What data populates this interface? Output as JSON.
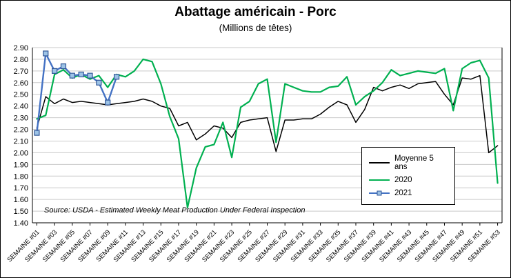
{
  "title": "Abattage américain - Porc",
  "subtitle": "(Millions de têtes)",
  "source": "Source: USDA - Estimated Weekly Meat Production Under Federal Inspection",
  "legend": {
    "items": [
      {
        "label": "Moyenne 5 ans",
        "color": "#000000",
        "marker": "line"
      },
      {
        "label": "2020",
        "color": "#00B050",
        "marker": "line"
      },
      {
        "label": "2021",
        "color": "#4472C4",
        "marker": "square",
        "marker_fill": "#9DC3E6",
        "marker_stroke": "#2F5597"
      }
    ]
  },
  "chart_data": {
    "type": "line",
    "title": "Abattage américain - Porc",
    "subtitle": "(Millions de têtes)",
    "ylim": [
      1.4,
      2.9
    ],
    "ytick_step": 0.1,
    "xtick_interval": 2,
    "grid_color": "#C9C9C9",
    "axis_color": "#000000",
    "legend_position": "right-middle",
    "categories": [
      "SEMAINE #01",
      "SEMAINE #02",
      "SEMAINE #03",
      "SEMAINE #04",
      "SEMAINE #05",
      "SEMAINE #06",
      "SEMAINE #07",
      "SEMAINE #08",
      "SEMAINE #09",
      "SEMAINE #10",
      "SEMAINE #11",
      "SEMAINE #12",
      "SEMAINE #13",
      "SEMAINE #14",
      "SEMAINE #15",
      "SEMAINE #16",
      "SEMAINE #17",
      "SEMAINE #18",
      "SEMAINE #19",
      "SEMAINE #20",
      "SEMAINE #21",
      "SEMAINE #22",
      "SEMAINE #23",
      "SEMAINE #24",
      "SEMAINE #25",
      "SEMAINE #26",
      "SEMAINE #27",
      "SEMAINE #28",
      "SEMAINE #29",
      "SEMAINE #30",
      "SEMAINE #31",
      "SEMAINE #32",
      "SEMAINE #33",
      "SEMAINE #34",
      "SEMAINE #35",
      "SEMAINE #36",
      "SEMAINE #37",
      "SEMAINE #38",
      "SEMAINE #39",
      "SEMAINE #40",
      "SEMAINE #41",
      "SEMAINE #42",
      "SEMAINE #43",
      "SEMAINE #44",
      "SEMAINE #45",
      "SEMAINE #46",
      "SEMAINE #47",
      "SEMAINE #48",
      "SEMAINE #49",
      "SEMAINE #50",
      "SEMAINE #51",
      "SEMAINE #52",
      "SEMAINE #53"
    ],
    "series": [
      {
        "name": "Moyenne 5 ans",
        "color": "#000000",
        "width": 1.5,
        "marker": "none",
        "values": [
          2.21,
          2.48,
          2.42,
          2.46,
          2.43,
          2.44,
          2.43,
          2.42,
          2.41,
          2.42,
          2.43,
          2.44,
          2.46,
          2.44,
          2.4,
          2.38,
          2.23,
          2.26,
          2.11,
          2.16,
          2.23,
          2.21,
          2.13,
          2.26,
          2.28,
          2.29,
          2.3,
          2.01,
          2.28,
          2.28,
          2.29,
          2.29,
          2.33,
          2.39,
          2.44,
          2.41,
          2.26,
          2.37,
          2.56,
          2.53,
          2.56,
          2.58,
          2.55,
          2.59,
          2.6,
          2.61,
          2.5,
          2.41,
          2.64,
          2.63,
          2.66,
          2.0,
          2.06
        ]
      },
      {
        "name": "2020",
        "color": "#00B050",
        "width": 2.2,
        "marker": "none",
        "values": [
          2.29,
          2.32,
          2.67,
          2.71,
          2.64,
          2.67,
          2.63,
          2.66,
          2.56,
          2.67,
          2.65,
          2.7,
          2.8,
          2.78,
          2.59,
          2.31,
          2.12,
          1.53,
          1.87,
          2.05,
          2.07,
          2.26,
          1.96,
          2.39,
          2.44,
          2.59,
          2.63,
          2.09,
          2.59,
          2.56,
          2.53,
          2.52,
          2.52,
          2.56,
          2.57,
          2.65,
          2.41,
          2.48,
          2.53,
          2.6,
          2.71,
          2.66,
          2.68,
          2.7,
          2.69,
          2.68,
          2.72,
          2.36,
          2.72,
          2.77,
          2.79,
          2.64,
          1.74
        ]
      },
      {
        "name": "2021",
        "color": "#4472C4",
        "width": 2.4,
        "marker": "square",
        "marker_fill": "#9DC3E6",
        "marker_stroke": "#2F5597",
        "values": [
          2.17,
          2.85,
          2.7,
          2.74,
          2.66,
          2.67,
          2.66,
          2.6,
          2.43,
          2.65,
          null,
          null,
          null,
          null,
          null,
          null,
          null,
          null,
          null,
          null,
          null,
          null,
          null,
          null,
          null,
          null,
          null,
          null,
          null,
          null,
          null,
          null,
          null,
          null,
          null,
          null,
          null,
          null,
          null,
          null,
          null,
          null,
          null,
          null,
          null,
          null,
          null,
          null,
          null,
          null,
          null,
          null,
          null
        ]
      }
    ]
  }
}
